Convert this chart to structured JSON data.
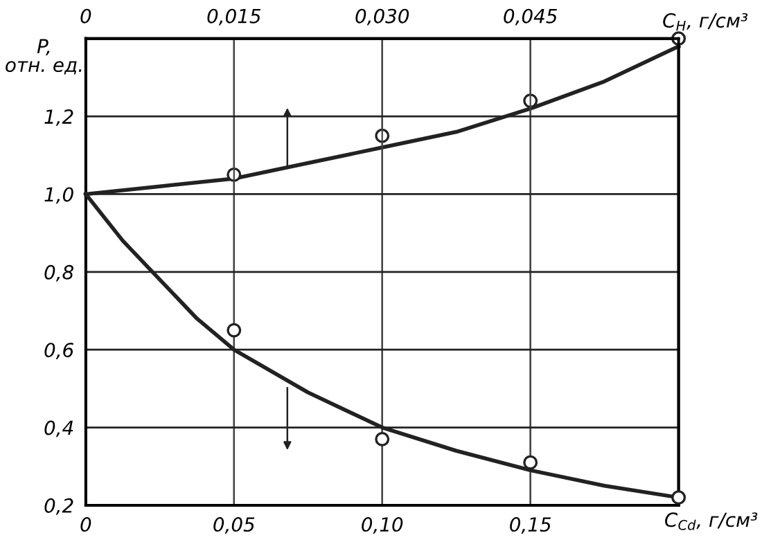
{
  "chart_data": {
    "type": "scatter",
    "xlabel": "C$_{Cd}$, г/см³",
    "x2label": "C$_{H}$, г/см³",
    "ylabel": "P,\nотн. ед.",
    "xlim": [
      0,
      0.2
    ],
    "xticks": [
      0,
      {
        "value": 0.05,
        "label": "0,05"
      },
      {
        "value": 0.1,
        "label": "0,10"
      },
      {
        "value": 0.15,
        "label": "0,15"
      }
    ],
    "x2lim": [
      0,
      0.06
    ],
    "x2ticks": [
      0,
      {
        "value": 0.015,
        "label": "0,015"
      },
      {
        "value": 0.03,
        "label": "0,030"
      },
      {
        "value": 0.045,
        "label": "0,045"
      }
    ],
    "ylim": [
      0.2,
      1.4
    ],
    "yticks": [
      {
        "value": 0.2,
        "label": "0,2"
      },
      {
        "value": 0.4,
        "label": "0,4"
      },
      {
        "value": 0.6,
        "label": "0,6"
      },
      {
        "value": 0.8,
        "label": "0,8"
      },
      {
        "value": 1.0,
        "label": "1,0"
      },
      {
        "value": 1.2,
        "label": "1,2"
      }
    ],
    "grid": true,
    "marker": "circle",
    "series": [
      {
        "type": "line",
        "color": "#222222",
        "x": [
          0,
          0.0075,
          0.015,
          0.0225,
          0.03,
          0.0375,
          0.045,
          0.0525,
          0.06
        ],
        "values": [
          1.0,
          1.02,
          1.04,
          1.08,
          1.12,
          1.16,
          1.22,
          1.29,
          1.38
        ],
        "axis": "x2",
        "marker": "none"
      },
      {
        "color": "#222222",
        "x": [
          0.015,
          0.03,
          0.045,
          0.06
        ],
        "values": [
          1.05,
          1.15,
          1.24,
          1.4
        ],
        "axis": "x2"
      },
      {
        "type": "line",
        "color": "#222222",
        "x": [
          0,
          0.0125,
          0.025,
          0.0375,
          0.05,
          0.075,
          0.1,
          0.125,
          0.15,
          0.175,
          0.2
        ],
        "values": [
          1.0,
          0.88,
          0.78,
          0.68,
          0.6,
          0.49,
          0.4,
          0.34,
          0.29,
          0.25,
          0.22
        ],
        "marker": "none"
      },
      {
        "color": "#222222",
        "x": [
          0.05,
          0.1,
          0.15,
          0.2
        ],
        "values": [
          0.65,
          0.37,
          0.31,
          0.22
        ]
      }
    ]
  }
}
